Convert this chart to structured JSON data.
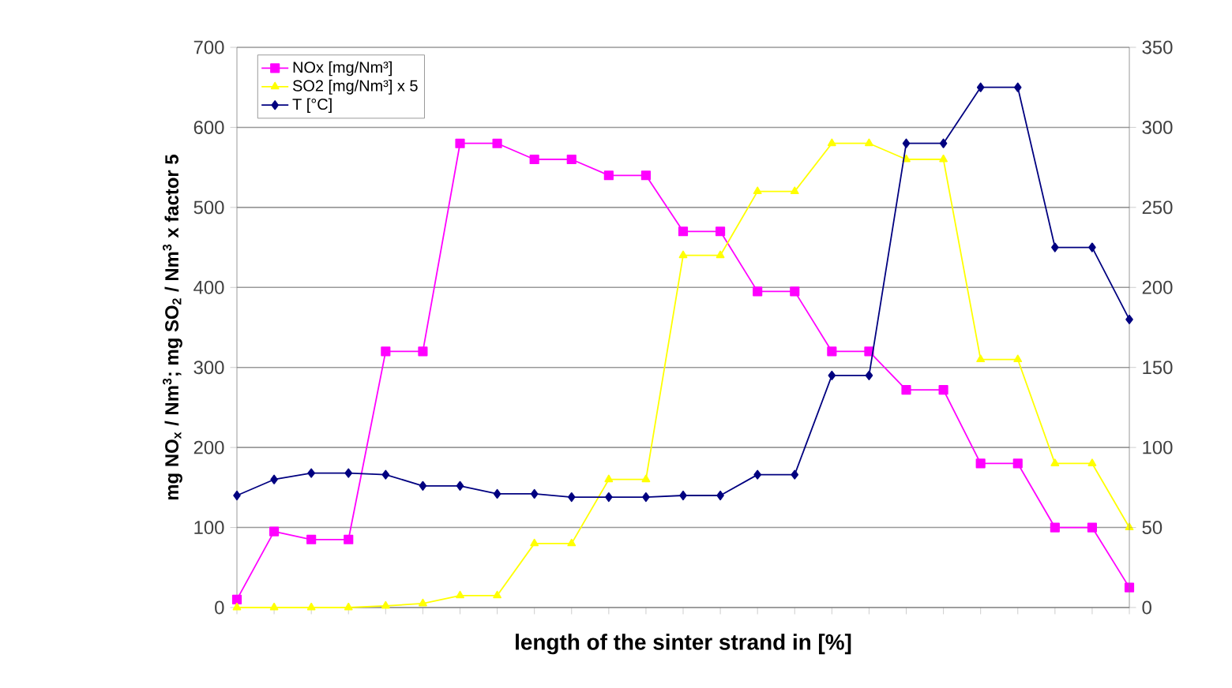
{
  "chart_data": {
    "type": "line",
    "xlabel": "length of the sinter strand in [%]",
    "ylabel": "mg NO$_{x}$ / Nm$^{3}$; mg SO$_{2}$ / Nm$^{3}$ x factor 5",
    "categories": [
      null,
      null,
      null,
      null,
      null,
      null,
      null,
      null,
      null,
      null,
      null,
      null,
      null,
      null,
      null,
      null,
      null,
      null,
      null,
      null,
      null,
      null,
      null,
      null,
      null
    ],
    "series": [
      {
        "name": "NOx [mg/Nm³]",
        "color": "#ff00ff",
        "marker": "square",
        "values": [
          10,
          95,
          85,
          85,
          320,
          320,
          580,
          580,
          560,
          560,
          540,
          540,
          470,
          470,
          395,
          395,
          320,
          320,
          272,
          272,
          180,
          180,
          100,
          100,
          25
        ]
      },
      {
        "name": "SO2 [mg/Nm³] x 5",
        "color": "#ffff00",
        "marker": "triangle",
        "values": [
          0,
          0,
          0,
          0,
          2,
          5,
          15,
          15,
          80,
          80,
          160,
          160,
          440,
          440,
          520,
          520,
          580,
          580,
          560,
          560,
          310,
          310,
          180,
          180,
          100
        ]
      },
      {
        "name": "T [°C]",
        "color": "#000080",
        "marker": "diamond",
        "axis": "y2",
        "values": [
          70,
          80,
          84,
          84,
          83,
          76,
          76,
          71,
          71,
          69,
          69,
          69,
          70,
          70,
          83,
          83,
          145,
          145,
          290,
          290,
          325,
          325,
          225,
          225,
          180
        ]
      }
    ],
    "ylim": [
      0,
      700
    ],
    "yticks": [
      0,
      100,
      200,
      300,
      400,
      500,
      600,
      700
    ],
    "y2lim": [
      0,
      350
    ],
    "y2ticks": [
      0,
      50,
      100,
      150,
      200,
      250,
      300,
      350
    ],
    "grid": "y",
    "legend": "top left",
    "line_style": "solid"
  }
}
